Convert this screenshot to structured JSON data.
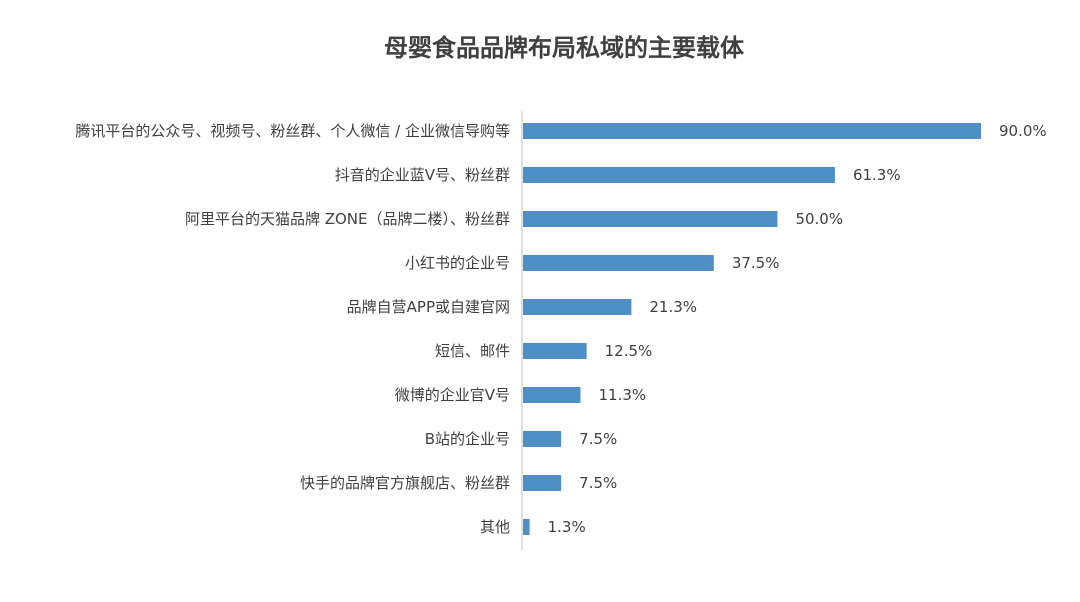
{
  "chart_data": {
    "type": "bar",
    "orientation": "horizontal",
    "title": "母婴食品品牌布局私域的主要载体",
    "xlabel": "",
    "ylabel": "",
    "xlim": [
      0,
      100
    ],
    "grid": false,
    "legend": "none",
    "bar_color": "#4F8FC8",
    "axis_color": "#C0C0C0",
    "value_suffix": "%",
    "categories": [
      "腾讯平台的公众号、视频号、粉丝群、个人微信 / 企业微信导购等",
      "抖音的企业蓝V号、粉丝群",
      "阿里平台的天猫品牌 ZONE（品牌二楼）、粉丝群",
      "小红书的企业号",
      "品牌自营APP或自建官网",
      "短信、邮件",
      "微博的企业官V号",
      "B站的企业号",
      "快手的品牌官方旗舰店、粉丝群",
      "其他"
    ],
    "values": [
      90.0,
      61.3,
      50.0,
      37.5,
      21.3,
      12.5,
      11.3,
      7.5,
      7.5,
      1.3
    ],
    "value_labels": [
      "90.0%",
      "61.3%",
      "50.0%",
      "37.5%",
      "21.3%",
      "12.5%",
      "11.3%",
      "7.5%",
      "7.5%",
      "1.3%"
    ]
  }
}
